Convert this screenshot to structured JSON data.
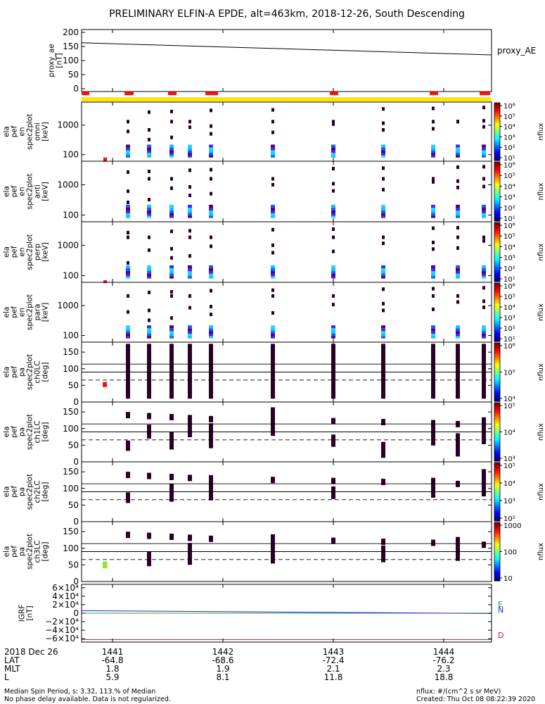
{
  "title": "PRELIMINARY ELFIN-A EPDE, alt=463km, 2018-12-26, South Descending",
  "colors": {
    "red": "#ee1111",
    "yellow": "#ffe600",
    "dark": "#2a0026"
  },
  "panels": [
    {
      "id": "proxy_ae",
      "ylabel": [
        "proxy_ae",
        "[nT]"
      ],
      "ticks": [
        "200",
        "150",
        "100",
        "50",
        "0"
      ],
      "right_label": "proxy_AE"
    },
    {
      "id": "en_omni",
      "ylabel": [
        "ela",
        "pef",
        "en",
        "spec2plot",
        "omni",
        "[keV]"
      ],
      "ticks": [
        "1000",
        "100"
      ],
      "cbar_ticks": [
        "10⁶",
        "10⁵",
        "10⁴",
        "10³",
        "10²",
        "10¹"
      ],
      "cbar_label": "nflux"
    },
    {
      "id": "en_anti",
      "ylabel": [
        "ela",
        "pef",
        "en",
        "spec2plot",
        "anti",
        "[keV]"
      ],
      "ticks": [
        "1000",
        "100"
      ],
      "cbar_ticks": [
        "10⁶",
        "10⁵",
        "10⁴",
        "10³",
        "10²",
        "10¹"
      ],
      "cbar_label": "nflux"
    },
    {
      "id": "en_perp",
      "ylabel": [
        "ela",
        "pef",
        "en",
        "spec2plot",
        "perp",
        "[keV]"
      ],
      "ticks": [
        "1000",
        "100"
      ],
      "cbar_ticks": [
        "10⁶",
        "10⁵",
        "10⁴",
        "10³",
        "10²",
        "10¹"
      ],
      "cbar_label": "nflux"
    },
    {
      "id": "en_para",
      "ylabel": [
        "ela",
        "pef",
        "en",
        "spec2plot",
        "para",
        "[keV]"
      ],
      "ticks": [
        "1000",
        "100"
      ],
      "cbar_ticks": [
        "10⁶",
        "10⁵",
        "10⁴",
        "10³",
        "10²",
        "10¹"
      ],
      "cbar_label": "nflux"
    },
    {
      "id": "pa_ch0",
      "ylabel": [
        "ela",
        "pef",
        "pa",
        "spec2plot",
        "ch0LC",
        "[deg]"
      ],
      "ticks": [
        "150",
        "100",
        "50",
        "0"
      ],
      "cbar_ticks": [
        "10⁶",
        "10⁵",
        "10⁴"
      ],
      "cbar_label": "nflux"
    },
    {
      "id": "pa_ch1",
      "ylabel": [
        "ela",
        "pef",
        "pa",
        "spec2plot",
        "ch1LC",
        "[deg]"
      ],
      "ticks": [
        "150",
        "100",
        "50",
        "0"
      ],
      "cbar_ticks": [
        "10⁵",
        "10⁴",
        "10³"
      ],
      "cbar_label": "nflux"
    },
    {
      "id": "pa_ch2",
      "ylabel": [
        "ela",
        "pef",
        "pa",
        "spec2plot",
        "ch2LC",
        "[deg]"
      ],
      "ticks": [
        "150",
        "100",
        "50",
        "0"
      ],
      "cbar_ticks": [
        "10⁵",
        "10⁴",
        "10³",
        "10²"
      ],
      "cbar_label": "nflux"
    },
    {
      "id": "pa_ch3",
      "ylabel": [
        "ela",
        "pef",
        "pa",
        "spec2plot",
        "ch3LC",
        "[deg]"
      ],
      "ticks": [
        "150",
        "100",
        "50",
        "0"
      ],
      "cbar_ticks": [
        "1000",
        "100",
        "10"
      ],
      "cbar_label": "nflux"
    },
    {
      "id": "igrf",
      "ylabel": [
        "IGRF",
        "[nT]"
      ],
      "ticks": [
        "6×10⁴",
        "4×10⁴",
        "2×10⁴",
        "0",
        "−2×10⁴",
        "−4×10⁴",
        "−6×10⁴"
      ],
      "legend": [
        "E",
        "N",
        "D"
      ]
    }
  ],
  "orbit_table": {
    "date": "2018 Dec 26",
    "rows": [
      {
        "label": "LAT",
        "values": [
          "-64.8",
          "-68.6",
          "-72.4",
          "-76.2"
        ]
      },
      {
        "label": "MLT",
        "values": [
          "1.8",
          "1.9",
          "2.1",
          "2.3"
        ]
      },
      {
        "label": "L",
        "values": [
          "5.9",
          "8.1",
          "11.8",
          "18.8"
        ]
      }
    ],
    "time_ticks": [
      "1441",
      "1442",
      "1443",
      "1444"
    ]
  },
  "footer": {
    "left_line1": "Median Spin Period, s: 3.32, 113.% of Median",
    "left_line2": "No phase delay available. Data is not regularized.",
    "right_line1": "nflux: #/(cm^2 s sr MeV)",
    "right_line2": "Created: Thu Oct 08 08:22:39 2020"
  },
  "chart_data": {
    "type": "spectrogram",
    "time_ticks": [
      "1441",
      "1442",
      "1443",
      "1444"
    ],
    "proxy_ae": {
      "ylim": [
        -10,
        210
      ],
      "start": 163,
      "end": 120
    },
    "en_ylim_keV": [
      60,
      6000
    ],
    "pa_ylim_deg": [
      0,
      180
    ],
    "pa_lines_deg": [
      114,
      90,
      66
    ],
    "igrf": {
      "ylim": [
        -68000,
        68000
      ],
      "E": 0,
      "N": 6000,
      "D": -62000
    }
  }
}
